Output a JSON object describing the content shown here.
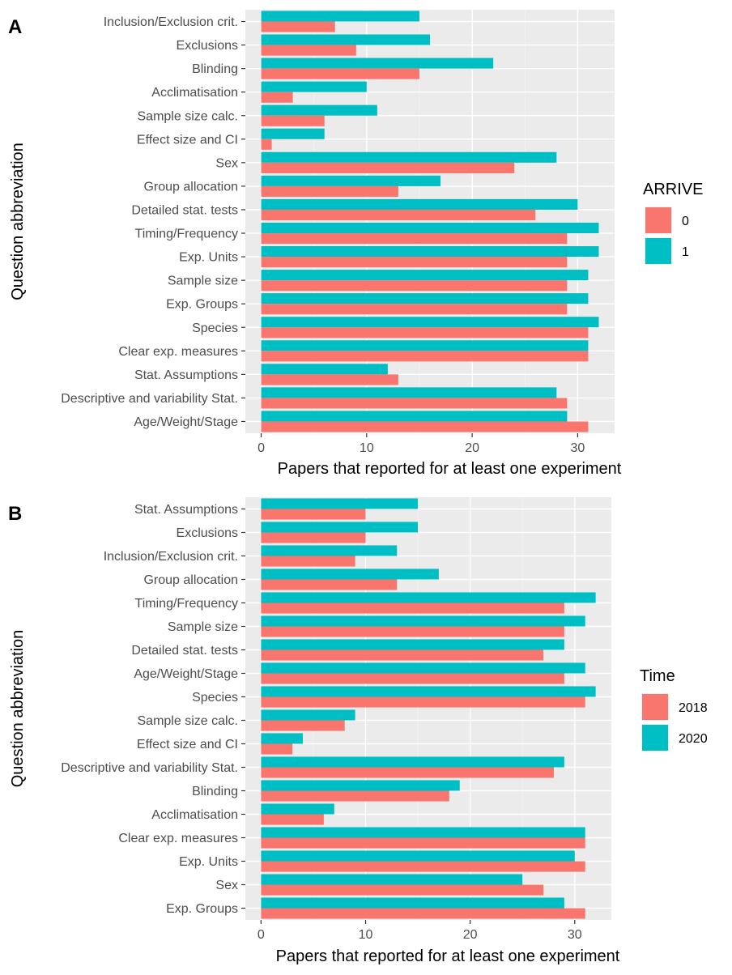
{
  "chart_data": [
    {
      "panel_tag": "A",
      "type": "bar",
      "orientation": "horizontal",
      "xlabel": "Papers that reported for at least one experiment",
      "ylabel": "Question abbreviation",
      "xlim": [
        0,
        33.5
      ],
      "x_ticks": [
        0,
        10,
        20,
        30
      ],
      "grid": true,
      "legend": {
        "title": "ARRIVE",
        "position": "right"
      },
      "categories": [
        "Inclusion/Exclusion crit.",
        "Exclusions",
        "Blinding",
        "Acclimatisation",
        "Sample size calc.",
        "Effect size and CI",
        "Sex",
        "Group allocation",
        "Detailed stat. tests",
        "Timing/Frequency",
        "Exp. Units",
        "Sample size ",
        "Exp. Groups",
        "Species",
        "Clear exp. measures",
        "Stat. Assumptions",
        "Descriptive and variability Stat.",
        "Age/Weight/Stage"
      ],
      "series": [
        {
          "name": "0",
          "color": "#F8766D",
          "values": [
            7,
            9,
            15,
            3,
            6,
            1,
            24,
            13,
            26,
            29,
            29,
            29,
            29,
            31,
            31,
            13,
            29,
            31
          ]
        },
        {
          "name": "1",
          "color": "#00BFC4",
          "values": [
            15,
            16,
            22,
            10,
            11,
            6,
            28,
            17,
            30,
            32,
            32,
            31,
            31,
            32,
            31,
            12,
            28,
            29
          ]
        }
      ]
    },
    {
      "panel_tag": "B",
      "type": "bar",
      "orientation": "horizontal",
      "xlabel": "Papers that reported for at least one experiment",
      "ylabel": "Question abbreviation",
      "xlim": [
        0,
        33.5
      ],
      "x_ticks": [
        0,
        10,
        20,
        30
      ],
      "grid": true,
      "legend": {
        "title": "Time",
        "position": "right"
      },
      "categories": [
        "Stat. Assumptions",
        "Exclusions",
        "Inclusion/Exclusion crit.",
        "Group allocation",
        "Timing/Frequency",
        "Sample size ",
        "Detailed stat. tests",
        "Age/Weight/Stage",
        "Species",
        "Sample size calc.",
        "Effect size and CI",
        "Descriptive and variability Stat.",
        "Blinding",
        "Acclimatisation",
        "Clear exp. measures",
        "Exp. Units",
        "Sex",
        "Exp. Groups"
      ],
      "series": [
        {
          "name": "2018",
          "color": "#F8766D",
          "values": [
            10,
            10,
            9,
            13,
            29,
            29,
            27,
            29,
            31,
            8,
            3,
            28,
            18,
            6,
            31,
            31,
            27,
            31
          ]
        },
        {
          "name": "2020",
          "color": "#00BFC4",
          "values": [
            15,
            15,
            13,
            17,
            32,
            31,
            29,
            31,
            32,
            9,
            4,
            29,
            19,
            7,
            31,
            30,
            25,
            29
          ]
        }
      ]
    }
  ]
}
